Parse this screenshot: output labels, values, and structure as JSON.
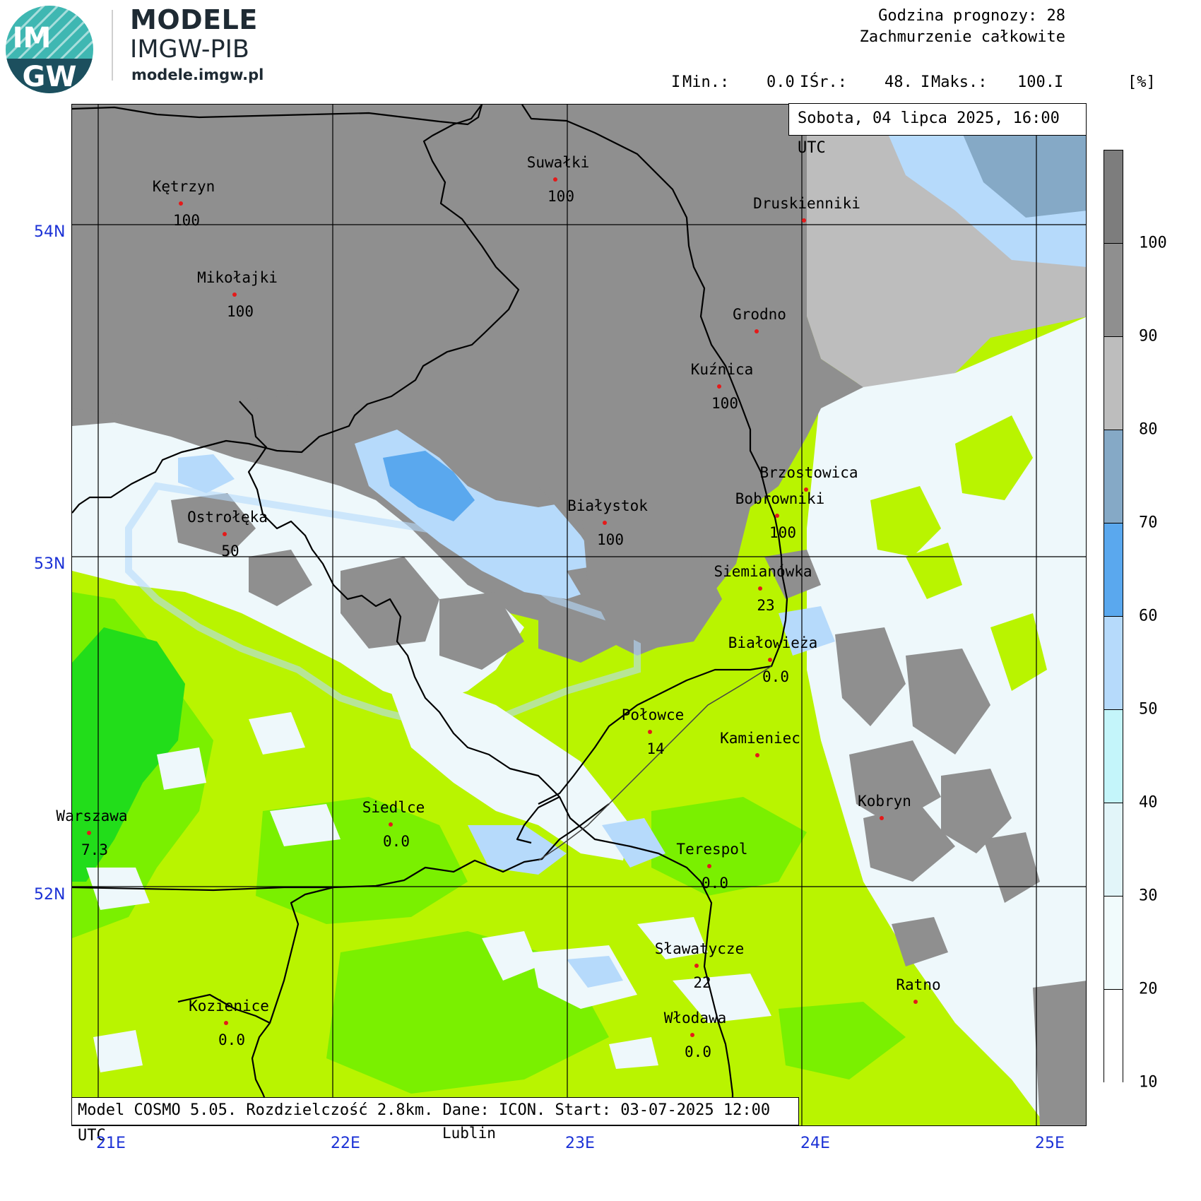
{
  "brand": {
    "logo_text_top": "IM",
    "logo_text_bottom": "GW",
    "title": "MODELE",
    "subtitle": "IMGW-PIB",
    "url": "modele.imgw.pl"
  },
  "header": {
    "forecast_hour": "Godzina prognozy: 28",
    "variable": "Zachmurzenie całkowite",
    "stats": {
      "sep1": "I",
      "min_label": "Min.:",
      "min_value": "0.0",
      "sep2": "I",
      "avg_label": "Śr.:",
      "avg_value": "48.",
      "sep3": "I",
      "max_label": "Maks.:",
      "max_value": "100.",
      "sep4": "I",
      "unit": "[%]"
    }
  },
  "date_label": "Sobota, 04 lipca 2025, 16:00 UTC",
  "model_label": "Model COSMO 5.05. Rozdzielczość 2.8km. Dane: ICON. Start: 03-07-2025 12:00 UTC",
  "lat_labels": [
    "54N",
    "53N",
    "52N"
  ],
  "lon_labels": [
    "21E",
    "22E",
    "23E",
    "24E",
    "25E"
  ],
  "outside_label": "Lublin",
  "cities": [
    {
      "name": "Kętrzyn",
      "value": "100"
    },
    {
      "name": "Mikołajki",
      "value": "100"
    },
    {
      "name": "Suwałki",
      "value": "100"
    },
    {
      "name": "Druskienniki",
      "value": ""
    },
    {
      "name": "Grodno",
      "value": ""
    },
    {
      "name": "Kuźnica",
      "value": "100"
    },
    {
      "name": "Brzostowica",
      "value": ""
    },
    {
      "name": "Bobrowniki",
      "value": "100"
    },
    {
      "name": "Ostrołęka",
      "value": "50"
    },
    {
      "name": "Białystok",
      "value": "100"
    },
    {
      "name": "Siemianówka",
      "value": "23"
    },
    {
      "name": "Białowieża",
      "value": "0.0"
    },
    {
      "name": "Połowce",
      "value": "14"
    },
    {
      "name": "Kamieniec",
      "value": ""
    },
    {
      "name": "Kobryn",
      "value": ""
    },
    {
      "name": "Warszawa",
      "value": "7.3"
    },
    {
      "name": "Siedlce",
      "value": "0.0"
    },
    {
      "name": "Terespol",
      "value": "0.0"
    },
    {
      "name": "Sławatycze",
      "value": "22"
    },
    {
      "name": "Ratno",
      "value": ""
    },
    {
      "name": "Kozienice",
      "value": "0.0"
    },
    {
      "name": "Włodawa",
      "value": "0.0"
    }
  ],
  "legend": {
    "ticks": [
      "100",
      "90",
      "80",
      "70",
      "60",
      "50",
      "40",
      "30",
      "20",
      "10"
    ],
    "colors": [
      "#7d7d7d",
      "#8f8f8f",
      "#bdbdbd",
      "#85a9c6",
      "#5aa8ee",
      "#b6dafb",
      "#c4f5fa",
      "#e2f5f9",
      "#f1fbfc",
      "#ffffff"
    ]
  },
  "palette": {
    "overcast": "#8f8f8f",
    "dark_gray": "#7d7d7d",
    "light_gray": "#bdbdbd",
    "blue": "#5aa8ee",
    "pale_blue": "#b6dafb",
    "near_white": "#eef8fb",
    "lime": "#b9f400",
    "green": "#7af000",
    "bright_green": "#22dd1a"
  }
}
